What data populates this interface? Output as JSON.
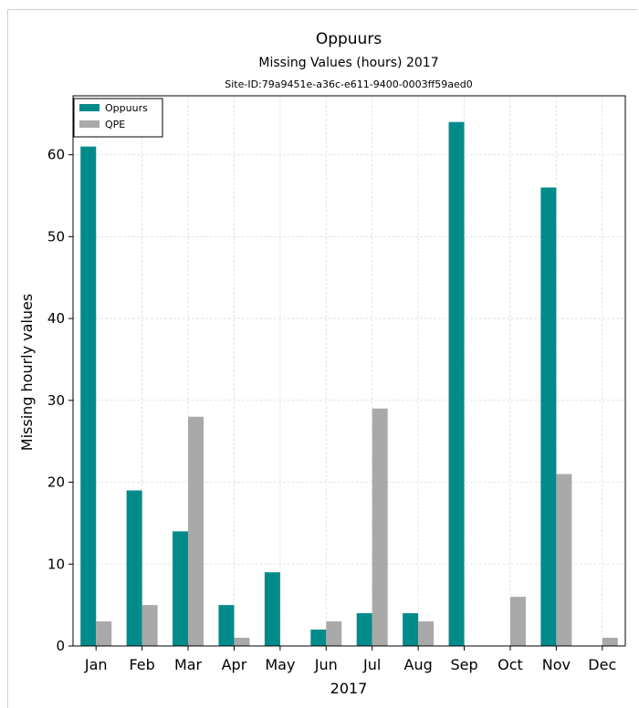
{
  "chart_data": {
    "type": "bar",
    "title": "Oppuurs",
    "subtitle": "Missing Values (hours) 2017",
    "site_id": "Site-ID:79a9451e-a36c-e611-9400-0003ff59aed0",
    "xlabel": "2017",
    "ylabel": "Missing hourly values",
    "categories": [
      "Jan",
      "Feb",
      "Mar",
      "Apr",
      "May",
      "Jun",
      "Jul",
      "Aug",
      "Sep",
      "Oct",
      "Nov",
      "Dec"
    ],
    "series": [
      {
        "name": "Oppuurs",
        "color": "#008b8b",
        "values": [
          61,
          19,
          14,
          5,
          9,
          2,
          4,
          4,
          64,
          0,
          56,
          0
        ]
      },
      {
        "name": "QPE",
        "color": "#a9a9a9",
        "values": [
          3,
          5,
          28,
          1,
          0,
          3,
          29,
          3,
          0,
          6,
          21,
          1
        ]
      }
    ],
    "yticks": [
      0,
      10,
      20,
      30,
      40,
      50,
      60
    ],
    "ylim": [
      0,
      67.2
    ],
    "grid": true,
    "legend_position": "top-left"
  }
}
